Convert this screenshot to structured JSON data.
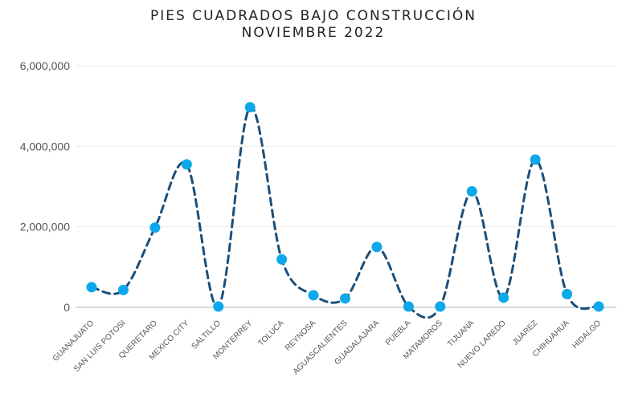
{
  "chart_data": {
    "type": "line",
    "title_lines": [
      "PIES CUADRADOS BAJO CONSTRUCCIÓN",
      "NOVIEMBRE 2022"
    ],
    "xlabel": "",
    "ylabel": "",
    "categories": [
      "GUANAJUATO",
      "SAN LUIS POTOSI",
      "QUERETARO",
      "MEXICO CITY",
      "SALTILLO",
      "MONTERREY",
      "TOLUCA",
      "REYNOSA",
      "AGUASCALIENTES",
      "GUADALAJARA",
      "PUEBLA",
      "MATAMOROS",
      "TIJUANA",
      "NUEVO LAREDO",
      "JUAREZ",
      "CHIHUAHUA",
      "HIDALGO"
    ],
    "series": [
      {
        "values": [
          500000,
          430000,
          1980000,
          3550000,
          20000,
          4970000,
          1190000,
          300000,
          220000,
          1500000,
          20000,
          20000,
          2880000,
          240000,
          3670000,
          330000,
          20000
        ],
        "line_color": "#1b4f7a",
        "marker_color": "#0da8e9"
      }
    ],
    "ylim": [
      0,
      6000000
    ],
    "yticks": [
      0,
      2000000,
      4000000,
      6000000
    ],
    "ytick_labels": [
      "0",
      "2,000,000",
      "4,000,000",
      "6,000,000"
    ],
    "grid": true,
    "legend": "none"
  }
}
